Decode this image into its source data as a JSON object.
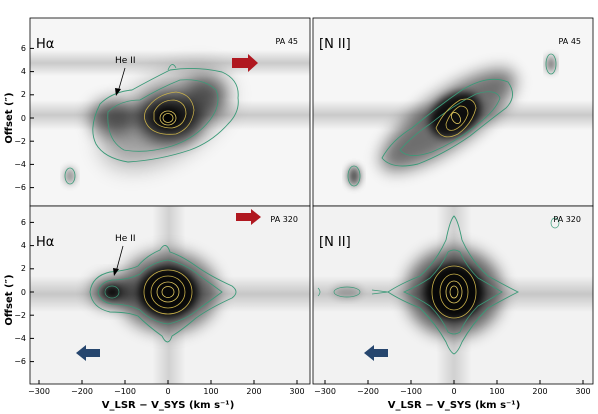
{
  "figure": {
    "y_axis_label": "Offset (″)",
    "x_axis_label": "V_LSR − V_SYS (km s⁻¹)",
    "x_ticks": [
      "−300",
      "−200",
      "−100",
      "0",
      "100",
      "200",
      "300"
    ],
    "y_ticks": [
      "6",
      "4",
      "2",
      "0",
      "−2",
      "−4",
      "−6"
    ]
  },
  "panels": [
    {
      "line_label": "Hα",
      "pa_label": "PA 45",
      "annotation": "He II",
      "arrow": "red-right"
    },
    {
      "line_label": "[N II]",
      "pa_label": "PA 45",
      "annotation": "",
      "arrow": ""
    },
    {
      "line_label": "Hα",
      "pa_label": "PA 320",
      "annotation": "He II",
      "arrow": "red-right+blue-left"
    },
    {
      "line_label": "[N II]",
      "pa_label": "PA 320",
      "annotation": "",
      "arrow": "blue-left"
    }
  ],
  "colors": {
    "red_arrow": "#b01820",
    "blue_arrow": "#26466e",
    "contour_outer": "#3a9a78",
    "contour_inner": "#c8b04a",
    "core_contour": "#e0c860"
  }
}
